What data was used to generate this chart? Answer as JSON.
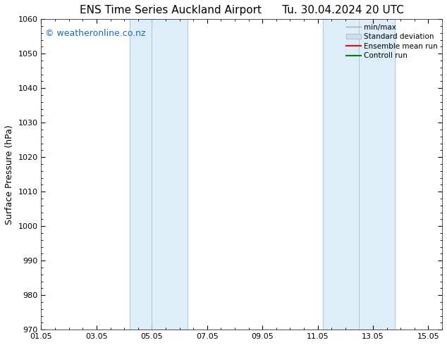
{
  "title": "ENS Time Series Auckland Airport",
  "title_date": "Tu. 30.04.2024 20 UTC",
  "ylabel": "Surface Pressure (hPa)",
  "ylim": [
    970,
    1060
  ],
  "yticks": [
    970,
    980,
    990,
    1000,
    1010,
    1020,
    1030,
    1040,
    1050,
    1060
  ],
  "xlim_start": 0,
  "xlim_end": 14.5,
  "xtick_labels": [
    "01.05",
    "03.05",
    "05.05",
    "07.05",
    "09.05",
    "11.05",
    "13.05",
    "15.05"
  ],
  "xtick_positions": [
    0,
    2,
    4,
    6,
    8,
    10,
    12,
    14
  ],
  "shaded_bands": [
    {
      "x_start": 3.0,
      "x_end": 4.0,
      "color": "#ddeeff",
      "border_color": "#99bbdd"
    },
    {
      "x_start": 4.0,
      "x_end": 5.5,
      "color": "#ddeeff",
      "border_color": "#99bbdd"
    },
    {
      "x_start": 10.0,
      "x_end": 11.0,
      "color": "#ddeeff",
      "border_color": "#99bbdd"
    },
    {
      "x_start": 11.0,
      "x_end": 12.5,
      "color": "#ddeeff",
      "border_color": "#99bbdd"
    }
  ],
  "watermark_text": "© weatheronline.co.nz",
  "watermark_color": "#1a6bb5",
  "watermark_fontsize": 9,
  "legend_entries": [
    {
      "label": "min/max",
      "color": "#aaaaaa",
      "lw": 1.5
    },
    {
      "label": "Standard deviation",
      "color": "#ccdded",
      "lw": 8
    },
    {
      "label": "Ensemble mean run",
      "color": "red",
      "lw": 1.5
    },
    {
      "label": "Controll run",
      "color": "green",
      "lw": 1.5
    }
  ],
  "bg_color": "#ffffff",
  "band_fill_color": "#ddeef8",
  "band_border_color": "#aaccdd",
  "title_fontsize": 11,
  "axis_label_fontsize": 9,
  "tick_fontsize": 8
}
